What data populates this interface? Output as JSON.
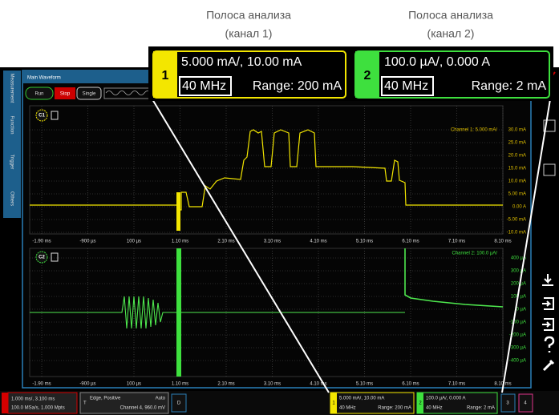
{
  "callout": {
    "headers": [
      [
        "Полоса анализа",
        "(канал 1)"
      ],
      [
        "Полоса анализа",
        "(канал 2)"
      ]
    ],
    "channels": [
      {
        "number": "1",
        "scale": "5.000 mA/, 10.00 mA",
        "bandwidth": "40 MHz",
        "range": "Range: 200 mA"
      },
      {
        "number": "2",
        "scale": "100.0 µA/, 0.000 A",
        "bandwidth": "40 MHz",
        "range": "Range: 2 mA"
      }
    ]
  },
  "sidebar": [
    "Measurement",
    "Function",
    "Trigger",
    "Others"
  ],
  "window": {
    "title": "Main Waveform",
    "buttons": [
      "Run",
      "Stop",
      "Single"
    ]
  },
  "x_labels": [
    "-1.90 ms",
    "-900 µs",
    "100 µs",
    "1.10 ms",
    "2.10 ms",
    "3.10 ms",
    "4.10 ms",
    "5.10 ms",
    "6.10 ms",
    "7.10 ms",
    "8.10 ms"
  ],
  "plots": [
    {
      "label": "C1",
      "info": "Channel 1: 5.000 mA/",
      "y_labels": [
        "30.0 mA",
        "25.0 mA",
        "20.0 mA",
        "15.0 mA",
        "10.0 mA",
        "5.00 mA",
        "0.00 A",
        "-5.00 mA",
        "-10.0 mA"
      ]
    },
    {
      "label": "C2",
      "info": "Channel 2: 100.0 µA/",
      "y_labels": [
        "400 µA",
        "300 µA",
        "200 µA",
        "100 µA",
        "0 µA",
        "-100 µA",
        "-200 µA",
        "-300 µA",
        "-400 µA"
      ]
    }
  ],
  "status_bar": {
    "timebase": [
      "1.000 ms/, 3.100 ms",
      "100.0 MSa/s, 1.000 Mpts"
    ],
    "trigger": {
      "icon": "T",
      "mode": "Edge, Positive",
      "sweep": "Auto",
      "source": "Channel 4, 960.0 mV"
    },
    "digital": "D",
    "other_channels": [
      "3",
      "4"
    ]
  }
}
